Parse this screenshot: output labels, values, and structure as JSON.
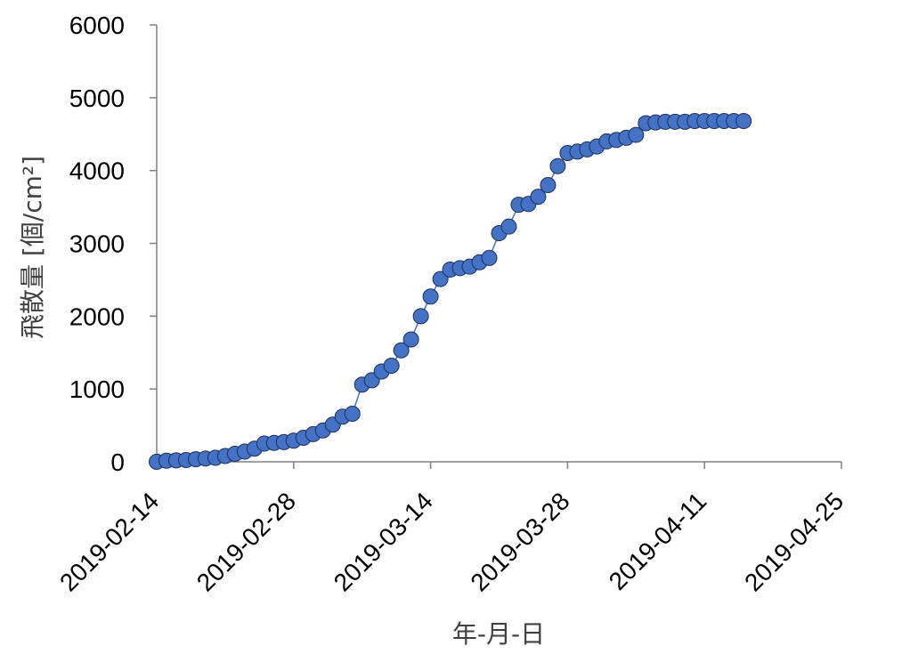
{
  "chart_data": {
    "type": "scatter",
    "title": "",
    "xlabel": "年-月-日",
    "ylabel": "飛散量 [個/cm²]",
    "xlim": [
      "2019-02-14",
      "2019-04-25"
    ],
    "ylim": [
      0,
      6000
    ],
    "x_ticks": [
      "2019-02-14",
      "2019-02-28",
      "2019-03-14",
      "2019-03-28",
      "2019-04-11",
      "2019-04-25"
    ],
    "y_ticks": [
      0,
      1000,
      2000,
      3000,
      4000,
      5000,
      6000
    ],
    "grid": false,
    "legend": "none",
    "connect_points": true,
    "series": [
      {
        "color": "#4472C4",
        "x": [
          "2019-02-14",
          "2019-02-15",
          "2019-02-16",
          "2019-02-17",
          "2019-02-18",
          "2019-02-19",
          "2019-02-20",
          "2019-02-21",
          "2019-02-22",
          "2019-02-23",
          "2019-02-24",
          "2019-02-25",
          "2019-02-26",
          "2019-02-27",
          "2019-02-28",
          "2019-03-01",
          "2019-03-02",
          "2019-03-03",
          "2019-03-04",
          "2019-03-05",
          "2019-03-06",
          "2019-03-07",
          "2019-03-08",
          "2019-03-09",
          "2019-03-10",
          "2019-03-11",
          "2019-03-12",
          "2019-03-13",
          "2019-03-14",
          "2019-03-15",
          "2019-03-16",
          "2019-03-17",
          "2019-03-18",
          "2019-03-19",
          "2019-03-20",
          "2019-03-21",
          "2019-03-22",
          "2019-03-23",
          "2019-03-24",
          "2019-03-25",
          "2019-03-26",
          "2019-03-27",
          "2019-03-28",
          "2019-03-29",
          "2019-03-30",
          "2019-03-31",
          "2019-04-01",
          "2019-04-02",
          "2019-04-03",
          "2019-04-04",
          "2019-04-05",
          "2019-04-06",
          "2019-04-07",
          "2019-04-08",
          "2019-04-09",
          "2019-04-10",
          "2019-04-11",
          "2019-04-12",
          "2019-04-13",
          "2019-04-14",
          "2019-04-15"
        ],
        "y": [
          0,
          15,
          20,
          25,
          35,
          45,
          55,
          80,
          110,
          140,
          180,
          250,
          260,
          270,
          290,
          330,
          380,
          430,
          510,
          620,
          660,
          1060,
          1120,
          1240,
          1320,
          1530,
          1680,
          2000,
          2270,
          2510,
          2640,
          2660,
          2680,
          2740,
          2800,
          3140,
          3230,
          3530,
          3540,
          3640,
          3800,
          4060,
          4240,
          4260,
          4290,
          4330,
          4400,
          4420,
          4450,
          4490,
          4650,
          4660,
          4670,
          4670,
          4670,
          4680,
          4680,
          4680,
          4680,
          4680,
          4680
        ]
      }
    ]
  }
}
